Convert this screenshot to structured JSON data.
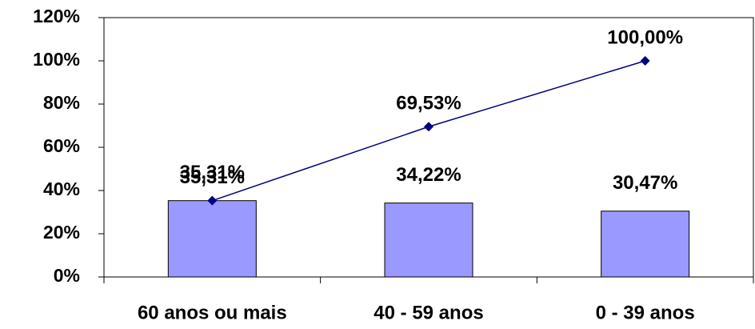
{
  "chart_data": {
    "type": "bar",
    "categories": [
      "60 anos ou mais",
      "40 - 59 anos",
      "0 - 39 anos"
    ],
    "series": [
      {
        "type": "bar",
        "color": "#9999ff",
        "values": [
          35.31,
          34.22,
          30.47
        ],
        "value_labels": [
          "35,31%",
          "34,22%",
          "30,47%"
        ]
      },
      {
        "type": "line",
        "color": "#000080",
        "values": [
          35.31,
          69.53,
          100.0
        ],
        "value_labels": [
          "35,31%",
          "69,53%",
          "100,00%"
        ]
      }
    ],
    "ylim": [
      0,
      120
    ],
    "yticks": [
      {
        "value": 0,
        "label": "0%"
      },
      {
        "value": 20,
        "label": "20%"
      },
      {
        "value": 40,
        "label": "40%"
      },
      {
        "value": 60,
        "label": "60%"
      },
      {
        "value": 80,
        "label": "80%"
      },
      {
        "value": 100,
        "label": "100%"
      },
      {
        "value": 120,
        "label": "120%"
      }
    ],
    "grid": false
  }
}
